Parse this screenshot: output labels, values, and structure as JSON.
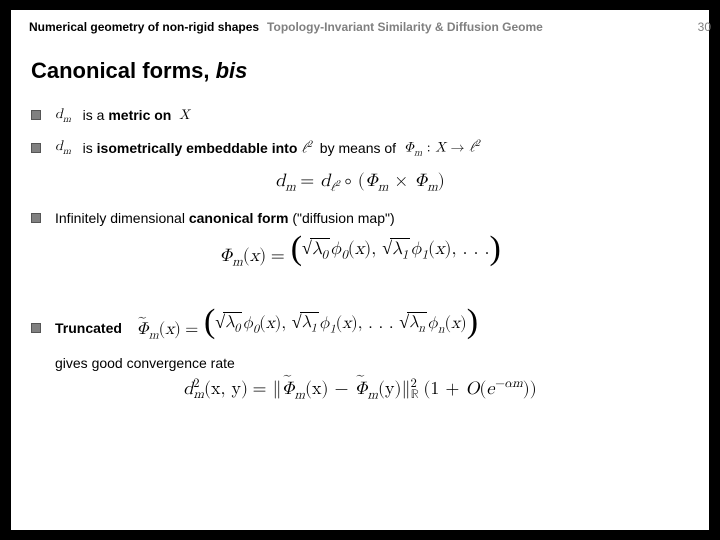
{
  "header": {
    "left": "Numerical geometry of non-rigid shapes",
    "right": "Topology-Invariant Similarity & Diffusion Geome",
    "page": "30"
  },
  "title": {
    "main": "Canonical forms, ",
    "italic": "bis"
  },
  "bullets": {
    "b1": {
      "t1": "is a ",
      "t2": "metric on ",
      "sym_dm": "d",
      "dm_sub": "m",
      "X": "X"
    },
    "b2": {
      "sym_dm": "d",
      "dm_sub": "m",
      "t1": "is ",
      "t2": "isometrically embeddable into",
      "ell": "ℓ",
      "ell_sup": "2",
      "t3": " by means of ",
      "phi": "Φ",
      "phi_sub": "m",
      "colon": " : ",
      "X": "X",
      "arrow": " → ",
      "ell2": "ℓ",
      "ell2_sup": "2"
    },
    "eq1": {
      "lhs_d": "d",
      "lhs_sub": "m",
      "eq": " = ",
      "d2": "d",
      "d2_sub": "ℓ",
      "d2_sup": "2",
      "circ": " ∘ ",
      "lp": "(",
      "Phi1": "Φ",
      "Phi1_sub": "m",
      "times": " × ",
      "Phi2": "Φ",
      "Phi2_sub": "m",
      "rp": ")"
    },
    "b3": {
      "t1": "Infinitely dimensional ",
      "t2": "canonical form",
      "t3": " (\"diffusion map\")"
    },
    "eq2": {
      "Phi": "Φ",
      "Phi_sub": "m",
      "lp": "(",
      "x": "x",
      "rp": ")",
      "eq": " = ",
      "term0_rad": "λ",
      "term0_rad_sub": "0",
      "term0_phi": "ϕ",
      "term0_phi_sub": "0",
      "term1_rad": "λ",
      "term1_rad_sub": "1",
      "term1_phi": "ϕ",
      "term1_phi_sub": "1",
      "dots": ", . . ."
    },
    "b4": {
      "t1": "Truncated"
    },
    "eq3": {
      "Phi": "Φ",
      "Phi_sub": "m",
      "lp": "(",
      "x": "x",
      "rp": ")",
      "eq": " = ",
      "term0_rad": "λ",
      "term0_rad_sub": "0",
      "term0_phi": "ϕ",
      "term0_phi_sub": "0",
      "term1_rad": "λ",
      "term1_rad_sub": "1",
      "term1_phi": "ϕ",
      "term1_phi_sub": "1",
      "dots": ", . . . ",
      "termn_rad": "λ",
      "termn_rad_sub": "n",
      "termn_phi": "ϕ",
      "termn_phi_sub": "n"
    },
    "cont": "gives good convergence rate",
    "eq4": {
      "d": "d",
      "d_sup": "2",
      "d_sub": "m",
      "args": "(x, y)",
      "eq": " = ",
      "norm_open": "∥",
      "Phi1": "Φ",
      "Phi1_sub": "m",
      "a1": "(x)",
      "minus": " − ",
      "Phi2": "Φ",
      "Phi2_sub": "m",
      "a2": "(y)",
      "norm_close": "∥",
      "norm_sup": "2",
      "norm_sub": "ℝ",
      "tail_lp": "(",
      "one": "1 + ",
      "O": "O",
      "olp": "(",
      "e": "e",
      "e_sup": "−αm",
      "orp": ")",
      "tail_rp": ")"
    }
  },
  "colors": {
    "grey": "#808080",
    "black": "#000000",
    "bg": "#ffffff"
  }
}
